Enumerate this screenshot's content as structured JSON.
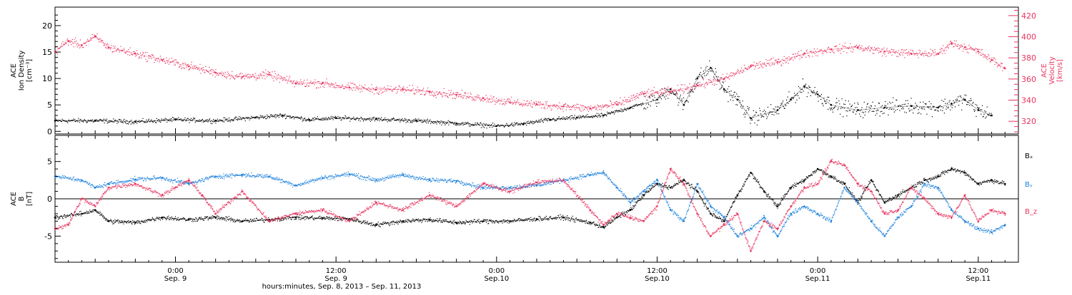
{
  "colors": {
    "black": "#000000",
    "red": "#e8345f",
    "blue": "#1e82dc",
    "axis": "#000000"
  },
  "x_axis": {
    "title": "hours:minutes, Sep.  8, 2013 – Sep. 11, 2013",
    "range_hours": [
      0,
      72
    ],
    "ticks": [
      {
        "t": 9,
        "time": "0:00",
        "date": "Sep. 9"
      },
      {
        "t": 21,
        "time": "12:00",
        "date": "Sep. 9"
      },
      {
        "t": 33,
        "time": "0:00",
        "date": "Sep.10"
      },
      {
        "t": 45,
        "time": "12:00",
        "date": "Sep.10"
      },
      {
        "t": 57,
        "time": "0:00",
        "date": "Sep.11"
      },
      {
        "t": 69,
        "time": "12:00",
        "date": "Sep.11"
      }
    ]
  },
  "chart_data": [
    {
      "type": "scatter",
      "panel": "top",
      "ylabel_lines": [
        "ACE",
        "Ion Density",
        "[cm⁻³]"
      ],
      "y2label_lines": [
        "ACE",
        "Velocity",
        "[km/s]"
      ],
      "ylim": [
        -0.5,
        23.5
      ],
      "y2lim": [
        308,
        428
      ],
      "yticks": [
        0,
        5,
        10,
        15,
        20
      ],
      "y2ticks": [
        320,
        340,
        360,
        380,
        400,
        420
      ],
      "series": [
        {
          "color": "black",
          "axis": "left",
          "values": [
            [
              0,
              2.0
            ],
            [
              3,
              2.0
            ],
            [
              6,
              1.8
            ],
            [
              9,
              2.2
            ],
            [
              12,
              2.0
            ],
            [
              15,
              2.6
            ],
            [
              17,
              3.0
            ],
            [
              19,
              2.2
            ],
            [
              21,
              2.5
            ],
            [
              24,
              2.3
            ],
            [
              27,
              2.0
            ],
            [
              30,
              1.5
            ],
            [
              33,
              1.0
            ],
            [
              35,
              1.4
            ],
            [
              37,
              2.2
            ],
            [
              39,
              2.6
            ],
            [
              41,
              3.0
            ],
            [
              43,
              4.5
            ],
            [
              45,
              6.0
            ],
            [
              46,
              8.0
            ],
            [
              47,
              5.0
            ],
            [
              48,
              10.0
            ],
            [
              49,
              12.0
            ],
            [
              50,
              8.0
            ],
            [
              51,
              6.0
            ],
            [
              52,
              2.5
            ],
            [
              54,
              4.0
            ],
            [
              55,
              6.0
            ],
            [
              56,
              8.5
            ],
            [
              57,
              7.0
            ],
            [
              58,
              5.0
            ],
            [
              60,
              4.0
            ],
            [
              62,
              4.5
            ],
            [
              64,
              4.8
            ],
            [
              66,
              4.5
            ],
            [
              67,
              5.2
            ],
            [
              68,
              6.0
            ],
            [
              69,
              4.0
            ],
            [
              70,
              3.0
            ]
          ]
        },
        {
          "color": "red",
          "axis": "right",
          "values": [
            [
              0,
              386
            ],
            [
              1,
              396
            ],
            [
              2,
              392
            ],
            [
              3,
              400
            ],
            [
              4,
              390
            ],
            [
              6,
              384
            ],
            [
              8,
              378
            ],
            [
              10,
              372
            ],
            [
              12,
              366
            ],
            [
              14,
              362
            ],
            [
              16,
              364
            ],
            [
              18,
              356
            ],
            [
              20,
              356
            ],
            [
              22,
              352
            ],
            [
              24,
              350
            ],
            [
              26,
              350
            ],
            [
              28,
              348
            ],
            [
              30,
              345
            ],
            [
              32,
              342
            ],
            [
              34,
              338
            ],
            [
              36,
              336
            ],
            [
              38,
              334
            ],
            [
              40,
              332
            ],
            [
              42,
              336
            ],
            [
              44,
              346
            ],
            [
              46,
              348
            ],
            [
              48,
              354
            ],
            [
              50,
              360
            ],
            [
              52,
              372
            ],
            [
              54,
              376
            ],
            [
              56,
              384
            ],
            [
              58,
              388
            ],
            [
              60,
              390
            ],
            [
              62,
              386
            ],
            [
              64,
              384
            ],
            [
              66,
              384
            ],
            [
              67,
              394
            ],
            [
              68,
              390
            ],
            [
              69,
              386
            ],
            [
              70,
              378
            ],
            [
              71,
              370
            ]
          ]
        }
      ]
    },
    {
      "type": "scatter",
      "panel": "bottom",
      "ylabel_lines": [
        "ACE",
        "B",
        "[nT]"
      ],
      "ylim": [
        -8.5,
        8.5
      ],
      "yticks": [
        -5,
        0,
        5
      ],
      "zero_line": true,
      "legend": [
        {
          "label": "Bₓ",
          "color": "black"
        },
        {
          "label": "Bᵧ",
          "color": "blue"
        },
        {
          "label": "B_z",
          "color": "red"
        }
      ],
      "series": [
        {
          "name": "Bₓ",
          "color": "black",
          "values": [
            [
              0,
              -2.5
            ],
            [
              2,
              -2.0
            ],
            [
              3,
              -1.5
            ],
            [
              4,
              -3.0
            ],
            [
              6,
              -3.2
            ],
            [
              8,
              -2.5
            ],
            [
              10,
              -2.8
            ],
            [
              12,
              -2.5
            ],
            [
              14,
              -3.0
            ],
            [
              16,
              -2.8
            ],
            [
              18,
              -2.5
            ],
            [
              20,
              -2.6
            ],
            [
              22,
              -2.7
            ],
            [
              24,
              -3.5
            ],
            [
              26,
              -3.0
            ],
            [
              28,
              -2.8
            ],
            [
              30,
              -3.2
            ],
            [
              32,
              -3.0
            ],
            [
              34,
              -3.0
            ],
            [
              36,
              -2.7
            ],
            [
              38,
              -2.5
            ],
            [
              40,
              -3.2
            ],
            [
              41,
              -3.8
            ],
            [
              42,
              -2.5
            ],
            [
              43,
              -1.5
            ],
            [
              44,
              0.5
            ],
            [
              45,
              2.0
            ],
            [
              46,
              1.5
            ],
            [
              47,
              2.5
            ],
            [
              48,
              1.0
            ],
            [
              49,
              -2.0
            ],
            [
              50,
              -3.0
            ],
            [
              51,
              0.5
            ],
            [
              52,
              3.5
            ],
            [
              53,
              1.0
            ],
            [
              54,
              -1.0
            ],
            [
              55,
              1.5
            ],
            [
              56,
              2.5
            ],
            [
              57,
              4.0
            ],
            [
              58,
              3.0
            ],
            [
              59,
              2.0
            ],
            [
              60,
              -0.5
            ],
            [
              61,
              2.5
            ],
            [
              62,
              -0.5
            ],
            [
              63,
              0.5
            ],
            [
              64,
              1.5
            ],
            [
              65,
              2.5
            ],
            [
              66,
              3.0
            ],
            [
              67,
              4.0
            ],
            [
              68,
              3.5
            ],
            [
              69,
              2.0
            ],
            [
              70,
              2.5
            ],
            [
              71,
              2.0
            ]
          ]
        },
        {
          "name": "Bᵧ",
          "color": "blue",
          "values": [
            [
              0,
              3.0
            ],
            [
              2,
              2.5
            ],
            [
              3,
              1.5
            ],
            [
              4,
              2.0
            ],
            [
              6,
              2.6
            ],
            [
              8,
              2.8
            ],
            [
              10,
              2.0
            ],
            [
              12,
              3.0
            ],
            [
              14,
              3.2
            ],
            [
              16,
              3.0
            ],
            [
              18,
              1.8
            ],
            [
              20,
              2.8
            ],
            [
              22,
              3.3
            ],
            [
              24,
              2.5
            ],
            [
              26,
              3.2
            ],
            [
              28,
              2.5
            ],
            [
              30,
              2.4
            ],
            [
              32,
              1.5
            ],
            [
              34,
              1.5
            ],
            [
              36,
              1.8
            ],
            [
              38,
              2.5
            ],
            [
              40,
              3.2
            ],
            [
              41,
              3.5
            ],
            [
              42,
              1.5
            ],
            [
              43,
              -0.5
            ],
            [
              44,
              1.0
            ],
            [
              45,
              2.5
            ],
            [
              46,
              -1.5
            ],
            [
              47,
              -3.0
            ],
            [
              48,
              2.0
            ],
            [
              49,
              -1.0
            ],
            [
              50,
              -2.5
            ],
            [
              51,
              -5.0
            ],
            [
              52,
              -4.0
            ],
            [
              53,
              -2.5
            ],
            [
              54,
              -5.0
            ],
            [
              55,
              -2.0
            ],
            [
              56,
              -1.0
            ],
            [
              57,
              -2.0
            ],
            [
              58,
              -3.0
            ],
            [
              59,
              1.5
            ],
            [
              60,
              -0.5
            ],
            [
              61,
              -3.0
            ],
            [
              62,
              -5.0
            ],
            [
              63,
              -2.5
            ],
            [
              64,
              -1.0
            ],
            [
              65,
              2.0
            ],
            [
              66,
              1.5
            ],
            [
              67,
              -1.5
            ],
            [
              68,
              -3.0
            ],
            [
              69,
              -4.0
            ],
            [
              70,
              -4.5
            ],
            [
              71,
              -3.5
            ]
          ]
        },
        {
          "name": "B_z",
          "color": "red",
          "values": [
            [
              0,
              -4.0
            ],
            [
              1,
              -3.5
            ],
            [
              2,
              0.0
            ],
            [
              3,
              -1.0
            ],
            [
              4,
              1.5
            ],
            [
              6,
              2.0
            ],
            [
              8,
              0.5
            ],
            [
              9,
              1.5
            ],
            [
              10,
              2.5
            ],
            [
              11,
              0.5
            ],
            [
              12,
              -2.0
            ],
            [
              14,
              1.0
            ],
            [
              16,
              -3.0
            ],
            [
              18,
              -2.0
            ],
            [
              20,
              -1.5
            ],
            [
              22,
              -3.0
            ],
            [
              24,
              -0.5
            ],
            [
              26,
              -1.5
            ],
            [
              28,
              0.5
            ],
            [
              30,
              -1.0
            ],
            [
              32,
              2.0
            ],
            [
              34,
              1.0
            ],
            [
              36,
              2.2
            ],
            [
              38,
              2.5
            ],
            [
              40,
              -1.5
            ],
            [
              41,
              -3.5
            ],
            [
              42,
              -2.0
            ],
            [
              43,
              -2.5
            ],
            [
              44,
              -3.0
            ],
            [
              45,
              -1.0
            ],
            [
              46,
              4.0
            ],
            [
              47,
              2.0
            ],
            [
              48,
              -2.0
            ],
            [
              49,
              -5.0
            ],
            [
              50,
              -3.5
            ],
            [
              51,
              -2.0
            ],
            [
              52,
              -7.0
            ],
            [
              53,
              -3.0
            ],
            [
              54,
              -4.0
            ],
            [
              55,
              -1.0
            ],
            [
              56,
              1.5
            ],
            [
              57,
              2.0
            ],
            [
              58,
              5.0
            ],
            [
              59,
              4.5
            ],
            [
              60,
              2.0
            ],
            [
              61,
              1.0
            ],
            [
              62,
              -2.0
            ],
            [
              63,
              -1.5
            ],
            [
              64,
              1.5
            ],
            [
              65,
              0.0
            ],
            [
              66,
              -2.0
            ],
            [
              67,
              -2.5
            ],
            [
              68,
              0.5
            ],
            [
              69,
              -3.0
            ],
            [
              70,
              -1.5
            ],
            [
              71,
              -2.0
            ]
          ]
        }
      ]
    }
  ]
}
